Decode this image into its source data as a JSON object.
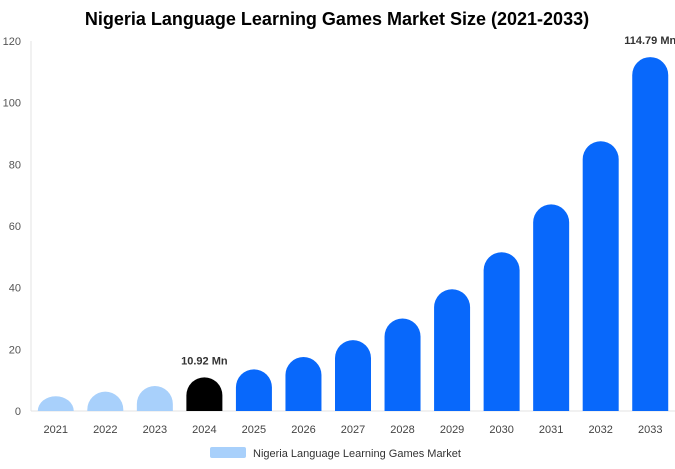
{
  "chart_data": {
    "type": "bar",
    "title": "Nigeria Language Learning Games Market Size (2021-2033)",
    "xlabel": "",
    "ylabel": "",
    "ylim": [
      0,
      120
    ],
    "yticks": [
      0,
      20,
      40,
      60,
      80,
      100,
      120
    ],
    "categories": [
      "2021",
      "2022",
      "2023",
      "2024",
      "2025",
      "2026",
      "2027",
      "2028",
      "2029",
      "2030",
      "2031",
      "2032",
      "2033"
    ],
    "series": [
      {
        "name": "Nigeria Language Learning Games Market",
        "values": [
          4.8,
          6.3,
          8.1,
          10.92,
          13.5,
          17.5,
          23.0,
          30.0,
          39.5,
          51.5,
          67.0,
          87.5,
          114.79
        ]
      }
    ],
    "data_labels": [
      {
        "category": "2024",
        "text": "10.92 Mn"
      },
      {
        "category": "2033",
        "text": "114.79 Mn"
      }
    ],
    "colors": {
      "historic": "#a8d0fb",
      "base_year": "#000000",
      "forecast": "#0868fb",
      "legend_swatch": "#a8d0fb"
    },
    "bar_color_groups": [
      "historic",
      "historic",
      "historic",
      "base_year",
      "forecast",
      "forecast",
      "forecast",
      "forecast",
      "forecast",
      "forecast",
      "forecast",
      "forecast",
      "forecast"
    ],
    "grid": false,
    "legend_position": "bottom-center"
  }
}
